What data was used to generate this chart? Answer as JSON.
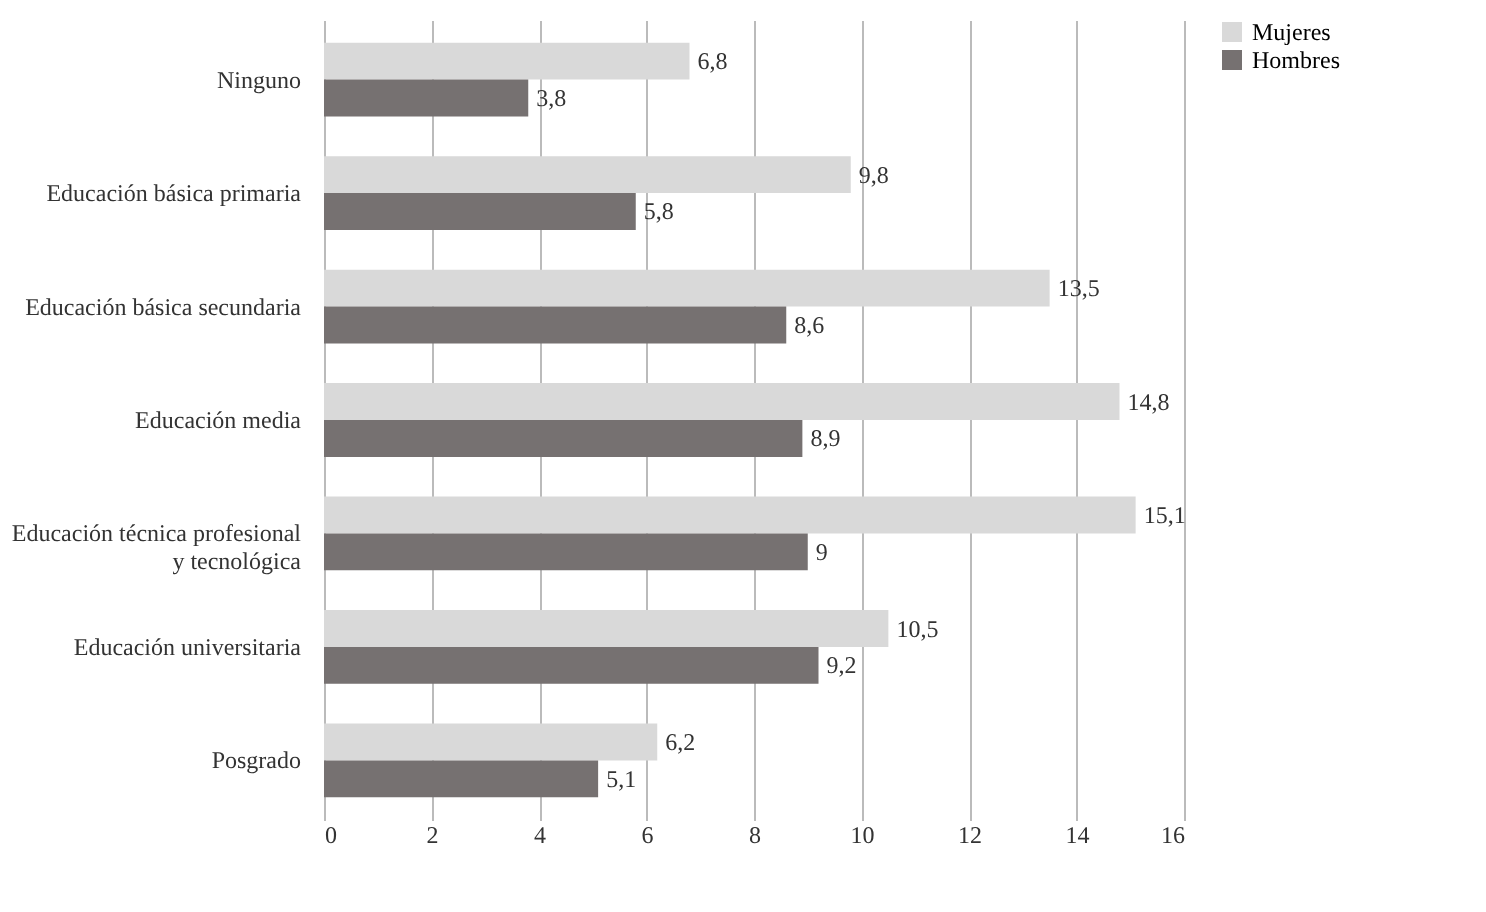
{
  "chart_data": {
    "type": "bar",
    "orientation": "horizontal",
    "categories": [
      "Ninguno",
      "Educación básica primaria",
      "Educación básica secundaria",
      "Educación media",
      "Educación técnica profesional\ny tecnológica",
      "Educación universitaria",
      "Posgrado"
    ],
    "series": [
      {
        "name": "Mujeres",
        "color": "#d9d9d9",
        "values": [
          6.8,
          9.8,
          13.5,
          14.8,
          15.1,
          10.5,
          6.2
        ],
        "value_labels": [
          "6,8",
          "9,8",
          "13,5",
          "14,8",
          "15,1",
          "10,5",
          "6,2"
        ]
      },
      {
        "name": "Hombres",
        "color": "#767171",
        "values": [
          3.8,
          5.8,
          8.6,
          8.9,
          9,
          9.2,
          5.1
        ],
        "value_labels": [
          "3,8",
          "5,8",
          "8,6",
          "8,9",
          "9",
          "9,2",
          "5,1"
        ]
      }
    ],
    "xlim": [
      0,
      16
    ],
    "xticks": [
      0,
      2,
      4,
      6,
      8,
      10,
      12,
      14,
      16
    ],
    "grid": "x",
    "legend": "right"
  }
}
